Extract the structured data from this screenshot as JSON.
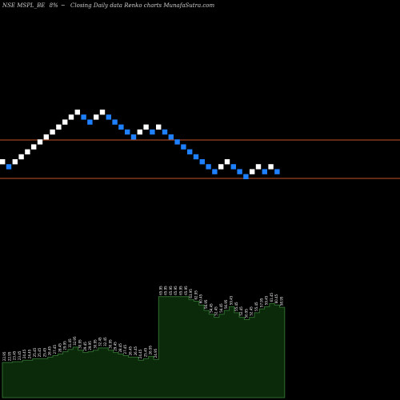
{
  "header": {
    "symbol": "NSE MSPL_BE",
    "change": "8%",
    "arrow": "~",
    "description": "Closing Daily data  Renko  charts MunafaSutra.com"
  },
  "colors": {
    "background": "#000000",
    "up_brick": "#ffffff",
    "down_brick": "#1e7fff",
    "reference_line": "#c0532a",
    "volume_fill": "#0a2a0a",
    "volume_stroke": "#2f6b2f",
    "text": "#cfcfcf"
  },
  "chart_data": {
    "type": "renko",
    "grid": false,
    "bricks": [
      "up",
      "down",
      "up",
      "up",
      "up",
      "up",
      "up",
      "up",
      "up",
      "up",
      "up",
      "up",
      "up",
      "down",
      "down",
      "up",
      "up",
      "down",
      "down",
      "down",
      "down",
      "down",
      "up",
      "up",
      "down",
      "up",
      "down",
      "down",
      "down",
      "down",
      "down",
      "down",
      "down",
      "down",
      "down",
      "up",
      "up",
      "down",
      "down",
      "down",
      "up",
      "up",
      "down",
      "up",
      "down"
    ],
    "reference_lines": [
      "upper",
      "lower"
    ],
    "volume_labels": [
      "22.95",
      "22.95",
      "23.45",
      "23.45",
      "24.45",
      "24.45",
      "25.45",
      "25.45",
      "25.45",
      "26.45",
      "27.45",
      "28.45",
      "29.95",
      "31.45",
      "32.95",
      "30.95",
      "29.45",
      "29.95",
      "30.95",
      "32.45",
      "32.45",
      "30.95",
      "29.45",
      "28.45",
      "27.45",
      "26.45",
      "26.45",
      "24.45",
      "25.45",
      "26.95",
      "24.95",
      "65.95",
      "65.95",
      "65.95",
      "65.95",
      "65.95",
      "65.95",
      "63.95",
      "62.95",
      "60.45",
      "56.95",
      "54.45",
      "52.45",
      "54.45",
      "56.95",
      "59.45",
      "55.45",
      "52.45",
      "50.95",
      "52.45",
      "55.45",
      "57.95",
      "59.45",
      "61.45",
      "60.45",
      "58.95"
    ],
    "volume_values": [
      22.95,
      22.95,
      23.45,
      23.45,
      24.45,
      24.45,
      25.45,
      25.45,
      25.45,
      26.45,
      27.45,
      28.45,
      29.95,
      31.45,
      32.95,
      30.95,
      29.45,
      29.95,
      30.95,
      32.45,
      32.45,
      30.95,
      29.45,
      28.45,
      27.45,
      26.45,
      26.45,
      24.45,
      25.45,
      26.95,
      24.95,
      65.95,
      65.95,
      65.95,
      65.95,
      65.95,
      65.95,
      63.95,
      62.95,
      60.45,
      56.95,
      54.45,
      52.45,
      54.45,
      56.95,
      59.45,
      55.45,
      52.45,
      50.95,
      52.45,
      55.45,
      57.95,
      59.45,
      61.45,
      60.45,
      58.95
    ]
  }
}
